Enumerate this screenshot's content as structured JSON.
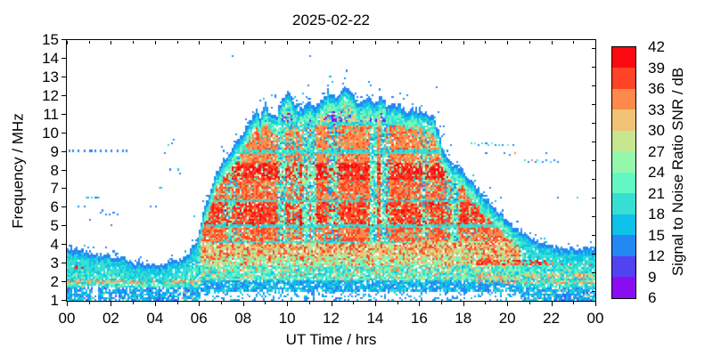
{
  "title": "2025-02-22",
  "axes": {
    "x": {
      "label": "UT Time / hrs",
      "tick_labels": [
        "00",
        "02",
        "04",
        "06",
        "08",
        "10",
        "12",
        "14",
        "16",
        "18",
        "20",
        "22",
        "00"
      ],
      "range_hours": [
        0,
        24
      ],
      "minor_tick_every_hours": 1
    },
    "y": {
      "label": "Frequency / MHz",
      "tick_labels": [
        "1",
        "2",
        "3",
        "4",
        "5",
        "6",
        "7",
        "8",
        "9",
        "10",
        "11",
        "12",
        "13",
        "14",
        "15"
      ],
      "range_mhz": [
        1,
        15
      ]
    }
  },
  "colorbar": {
    "label": "Signal to Noise Ratio SNR / dB",
    "tick_labels": [
      "6",
      "9",
      "12",
      "15",
      "18",
      "21",
      "24",
      "27",
      "30",
      "33",
      "36",
      "39",
      "42"
    ],
    "range_db": [
      6,
      42
    ],
    "band_colors_low_to_high": [
      "#8a0cf0",
      "#5143f2",
      "#2387f4",
      "#0fc0e8",
      "#35e0d2",
      "#63f7c3",
      "#93f7ac",
      "#c6e690",
      "#f0c376",
      "#fd8a4b",
      "#ff4326",
      "#fa0a10"
    ]
  },
  "chart_data": {
    "type": "heatmap",
    "title": "2025-02-22",
    "xlabel": "UT Time / hrs",
    "ylabel": "Frequency / MHz",
    "xlim": [
      0,
      24
    ],
    "ylim": [
      1,
      15
    ],
    "colorbar_label": "Signal to Noise Ratio SNR / dB",
    "snr_range_db": [
      6,
      42
    ],
    "envelope": {
      "t_hours": [
        0,
        0.5,
        1,
        1.5,
        2,
        2.5,
        3,
        3.5,
        4,
        4.5,
        5,
        5.3,
        5.6,
        5.9,
        6.2,
        6.5,
        6.8,
        7.1,
        7.4,
        7.7,
        8,
        8.3,
        8.6,
        8.8,
        9,
        9.2,
        9.5,
        9.8,
        10.1,
        10.35,
        10.6,
        11,
        11.3,
        11.6,
        11.9,
        12.2,
        12.45,
        12.7,
        13,
        13.3,
        13.7,
        14,
        14.3,
        14.6,
        15,
        15.4,
        15.7,
        16,
        16.3,
        16.6,
        16.85,
        17.1,
        17.5,
        18,
        18.4,
        18.8,
        19.2,
        19.6,
        20,
        20.4,
        20.8,
        21.2,
        21.6,
        22,
        22.5,
        23,
        23.5,
        24
      ],
      "fmax_mhz": [
        3.9,
        3.75,
        3.6,
        3.5,
        3.45,
        3.3,
        3.1,
        2.95,
        2.95,
        3.0,
        3.2,
        3.35,
        3.6,
        4.3,
        5.6,
        6.9,
        7.9,
        8.5,
        9.0,
        9.6,
        10.0,
        10.6,
        11.2,
        10.8,
        11.6,
        11.2,
        10.9,
        11.9,
        12.2,
        11.6,
        11.3,
        11.6,
        11.4,
        11.9,
        12.3,
        11.9,
        12.2,
        12.5,
        12.0,
        11.6,
        11.8,
        11.7,
        12.0,
        11.4,
        11.6,
        11.2,
        11.4,
        11.1,
        11.2,
        10.9,
        10.2,
        9.0,
        8.4,
        8.0,
        7.4,
        6.8,
        6.3,
        5.8,
        5.3,
        4.9,
        4.6,
        4.3,
        4.1,
        3.95,
        3.85,
        3.8,
        3.8,
        3.8
      ]
    },
    "day_interval_hours": [
      6.05,
      20.6
    ],
    "day_snr_bands": [
      {
        "f0": 4.25,
        "f1": 5.0,
        "snr": 38
      },
      {
        "f0": 5.0,
        "f1": 6.35,
        "snr": 40
      },
      {
        "f0": 6.35,
        "f1": 7.55,
        "snr": 38
      },
      {
        "f0": 7.55,
        "f1": 8.45,
        "snr": 41
      },
      {
        "f0": 8.45,
        "f1": 10.45,
        "snr": 37
      },
      {
        "f0": 10.45,
        "f1": 15.0,
        "snr": 33
      }
    ],
    "quiet_lines": [
      {
        "f": 10.5,
        "t0": 9.3,
        "t1": 16.7
      },
      {
        "f": 9.0,
        "t0": 7.0,
        "t1": 17.2
      },
      {
        "f": 6.35,
        "t0": 6.5,
        "t1": 18.2
      },
      {
        "f": 5.0,
        "t0": 6.3,
        "t1": 19.5
      },
      {
        "f": 4.15,
        "t0": 6.5,
        "t1": 15.5
      }
    ],
    "night_streaks": [
      {
        "f": 2.0,
        "w": 0.13,
        "t0": 0.0,
        "t1": 6.2,
        "snr": 33,
        "p": 0.55
      },
      {
        "f": 2.9,
        "w": 0.18,
        "t0": 0.3,
        "t1": 1.9,
        "snr": 40,
        "p": 0.6
      },
      {
        "f": 3.05,
        "w": 0.18,
        "t0": 18.6,
        "t1": 24.0,
        "snr": 38,
        "p": 0.6
      },
      {
        "f": 2.35,
        "w": 0.15,
        "t0": 18.6,
        "t1": 24.0,
        "snr": 32,
        "p": 0.45
      },
      {
        "f": 2.0,
        "w": 0.13,
        "t0": 18.6,
        "t1": 24.0,
        "snr": 33,
        "p": 0.4
      }
    ],
    "gaps": [
      {
        "t0": 1.2,
        "t1": 1.45,
        "f1": 1.8
      }
    ],
    "dots_t_f_snr": [
      [
        0.1,
        9.1,
        13
      ],
      [
        0.3,
        9.1,
        13
      ],
      [
        0.55,
        9.1,
        13
      ],
      [
        0.8,
        9.1,
        13
      ],
      [
        1.0,
        9.1,
        13
      ],
      [
        1.15,
        9.1,
        13
      ],
      [
        1.3,
        9.1,
        13
      ],
      [
        1.55,
        9.1,
        13
      ],
      [
        1.8,
        9.1,
        13
      ],
      [
        2.0,
        9.1,
        13
      ],
      [
        2.25,
        9.1,
        13
      ],
      [
        2.5,
        9.1,
        13
      ],
      [
        2.7,
        9.1,
        13
      ],
      [
        0.5,
        6.05,
        13
      ],
      [
        0.75,
        6.05,
        13
      ],
      [
        0.85,
        6.55,
        19
      ],
      [
        0.95,
        6.6,
        16
      ],
      [
        1.1,
        6.5,
        19
      ],
      [
        1.25,
        6.55,
        13
      ],
      [
        1.35,
        6.6,
        13
      ],
      [
        1.45,
        6.5,
        19
      ],
      [
        1.05,
        5.35,
        13
      ],
      [
        1.5,
        5.75,
        13
      ],
      [
        1.65,
        5.8,
        13
      ],
      [
        1.8,
        5.65,
        13
      ],
      [
        1.95,
        5.6,
        13
      ],
      [
        2.1,
        5.7,
        13
      ],
      [
        2.25,
        5.65,
        13
      ],
      [
        2.0,
        5.1,
        13
      ],
      [
        3.8,
        6.0,
        13
      ],
      [
        4.0,
        6.0,
        13
      ],
      [
        4.2,
        7.0,
        19
      ],
      [
        4.3,
        7.0,
        16
      ],
      [
        4.45,
        8.9,
        13
      ],
      [
        4.6,
        9.3,
        19
      ],
      [
        4.75,
        9.4,
        13
      ],
      [
        4.9,
        9.65,
        13
      ],
      [
        4.7,
        8.0,
        13
      ],
      [
        5.05,
        8.0,
        16
      ],
      [
        5.15,
        7.8,
        13
      ],
      [
        5.8,
        5.5,
        16
      ],
      [
        7.5,
        14.1,
        13
      ],
      [
        11.0,
        14.1,
        13
      ],
      [
        11.85,
        12.5,
        13
      ],
      [
        12.6,
        12.9,
        13
      ],
      [
        14.2,
        12.3,
        13
      ],
      [
        15.1,
        12.2,
        13
      ],
      [
        16.4,
        10.5,
        13
      ],
      [
        16.55,
        10.4,
        13
      ],
      [
        16.8,
        12.4,
        13
      ],
      [
        16.85,
        11.1,
        13
      ],
      [
        17.15,
        10.3,
        13
      ],
      [
        16.6,
        9.9,
        13
      ],
      [
        16.85,
        9.9,
        13
      ],
      [
        17.1,
        9.9,
        13
      ],
      [
        18.4,
        9.4,
        19
      ],
      [
        18.55,
        9.45,
        22
      ],
      [
        18.7,
        9.35,
        13
      ],
      [
        18.85,
        9.4,
        19
      ],
      [
        19.0,
        9.45,
        13
      ],
      [
        19.15,
        9.35,
        19
      ],
      [
        19.3,
        9.4,
        22
      ],
      [
        19.45,
        9.3,
        13
      ],
      [
        19.6,
        9.35,
        19
      ],
      [
        19.8,
        9.3,
        13
      ],
      [
        20.0,
        9.35,
        22
      ],
      [
        20.3,
        9.3,
        13
      ],
      [
        19.0,
        8.9,
        13
      ],
      [
        19.9,
        8.9,
        13
      ],
      [
        20.15,
        8.85,
        13
      ],
      [
        20.35,
        8.9,
        33
      ],
      [
        20.8,
        8.5,
        19
      ],
      [
        20.95,
        8.45,
        13
      ],
      [
        21.1,
        8.5,
        33
      ],
      [
        21.25,
        8.45,
        13
      ],
      [
        21.4,
        8.5,
        19
      ],
      [
        21.6,
        8.45,
        13
      ],
      [
        21.75,
        8.5,
        13
      ],
      [
        21.95,
        8.45,
        19
      ],
      [
        22.1,
        8.5,
        13
      ],
      [
        22.25,
        8.45,
        13
      ],
      [
        21.8,
        8.9,
        13
      ],
      [
        19.7,
        6.5,
        13
      ],
      [
        22.3,
        6.5,
        13
      ],
      [
        23.2,
        6.5,
        19
      ]
    ]
  }
}
